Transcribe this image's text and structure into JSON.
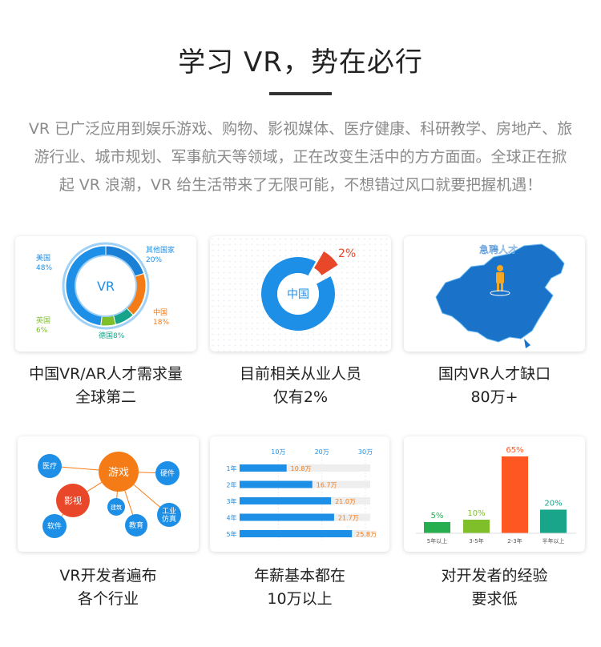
{
  "header": {
    "title": "学习 VR，势在必行"
  },
  "intro": {
    "lines": [
      "VR 已广泛应用到娱乐游戏、购物、影视媒体、医疗健康、科研教学、房地产、旅",
      "游行业、城市规划、军事航天等领域，正在改变生活中的方方面面。全球正在掀",
      "起 VR 浪潮，VR 给生活带来了无限可能，不想错过风口就要把握机遇！"
    ]
  },
  "cards": [
    {
      "caption": [
        "中国VR/AR人才需求量",
        "全球第二"
      ]
    },
    {
      "caption": [
        "目前相关从业人员",
        "仅有2%"
      ]
    },
    {
      "caption": [
        "国内VR人才缺口",
        "80万+"
      ]
    },
    {
      "caption": [
        "VR开发者遍布",
        "各个行业"
      ]
    },
    {
      "caption": [
        "年薪基本都在",
        "10万以上"
      ]
    },
    {
      "caption": [
        "对开发者的经验",
        "要求低"
      ]
    }
  ],
  "colors": {
    "blue": "#1e8fe6",
    "orange": "#f47b16",
    "red": "#e8472a",
    "green": "#27ae4f",
    "teal": "#16a38a",
    "lime": "#7fbf2a",
    "gray_track": "#eeeeee"
  },
  "chart_data": [
    {
      "type": "pie",
      "center_label": "VR",
      "slices": [
        {
          "label": "美国",
          "value": 48,
          "text": "48%",
          "color": "#1e8fe6"
        },
        {
          "label": "其他国家",
          "value": 20,
          "text": "20%",
          "color": "#1e8fe6"
        },
        {
          "label": "中国",
          "value": 18,
          "text": "18%",
          "color": "#f47b16"
        },
        {
          "label": "德国",
          "value": 8,
          "text": "8%",
          "color": "#16a38a"
        },
        {
          "label": "英国",
          "value": 6,
          "text": "6%",
          "color": "#7fbf2a"
        }
      ]
    },
    {
      "type": "pie",
      "center_label": "中国",
      "slices": [
        {
          "label": "中国",
          "value": 98,
          "color": "#1e8fe6"
        },
        {
          "label": "2%",
          "value": 2,
          "color": "#e8472a"
        }
      ]
    },
    {
      "type": "bar",
      "orientation": "horizontal",
      "categories": [
        "1年",
        "2年",
        "3年",
        "4年",
        "5年"
      ],
      "values": [
        10.8,
        16.7,
        21.0,
        21.7,
        25.8
      ],
      "value_labels": [
        "10.8万",
        "16.7万",
        "21.0万",
        "21.7万",
        "25.8万"
      ],
      "ticks": [
        "10万",
        "20万",
        "30万"
      ],
      "tick_values": [
        10,
        20,
        30
      ],
      "xlim": [
        0,
        30
      ]
    },
    {
      "type": "bar",
      "categories": [
        "5年以上",
        "3-5年",
        "2-3年",
        "半年以上"
      ],
      "values": [
        5,
        10,
        65,
        20
      ],
      "value_labels": [
        "5%",
        "10%",
        "65%",
        "20%"
      ],
      "colors": [
        "#27ae4f",
        "#7fbf2a",
        "#ff5722",
        "#18a58a"
      ],
      "ylim": [
        0,
        65
      ]
    }
  ],
  "map": {
    "label": "急聘人才"
  },
  "bubbles": [
    {
      "label": "游戏",
      "color": "#f47b16"
    },
    {
      "label": "影视",
      "color": "#e8472a"
    },
    {
      "label": "医疗",
      "color": "#1e8fe6"
    },
    {
      "label": "硬件",
      "color": "#1e8fe6"
    },
    {
      "label": "建筑",
      "color": "#1e8fe6"
    },
    {
      "label": "工业",
      "color": "#1e8fe6"
    },
    {
      "label": "仿真",
      "color": "#1e8fe6"
    },
    {
      "label": "软件",
      "color": "#1e8fe6"
    },
    {
      "label": "教育",
      "color": "#1e8fe6"
    }
  ]
}
